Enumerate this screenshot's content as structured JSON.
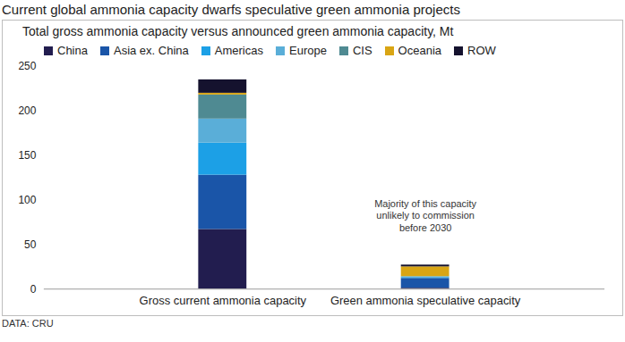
{
  "chart_data": {
    "type": "bar",
    "title": "Current global ammonia capacity dwarfs speculative green ammonia projects",
    "subtitle": "Total gross ammonia capacity versus announced green ammonia capacity, Mt",
    "source": "DATA: CRU",
    "annotation": "Majority of this capacity\nunlikely to commission\nbefore 2030",
    "categories": [
      "Gross current ammonia capacity",
      "Green ammonia speculative capacity"
    ],
    "series": [
      {
        "name": "China",
        "color": "#221d4f",
        "values": [
          67,
          1
        ]
      },
      {
        "name": "Asia ex. China",
        "color": "#1a55a8",
        "values": [
          61,
          11
        ]
      },
      {
        "name": "Americas",
        "color": "#1ca0e6",
        "values": [
          36,
          1
        ]
      },
      {
        "name": "Europe",
        "color": "#5aaed8",
        "values": [
          27,
          1
        ]
      },
      {
        "name": "CIS",
        "color": "#4f8a92",
        "values": [
          27,
          0
        ]
      },
      {
        "name": "Oceania",
        "color": "#d9a514",
        "values": [
          2,
          11
        ]
      },
      {
        "name": "ROW",
        "color": "#15122e",
        "values": [
          15,
          2
        ]
      }
    ],
    "stacked": true,
    "legend": "top",
    "grid": false,
    "ylim": [
      0,
      250
    ],
    "yticks": [
      0,
      50,
      100,
      150,
      200,
      250
    ]
  }
}
